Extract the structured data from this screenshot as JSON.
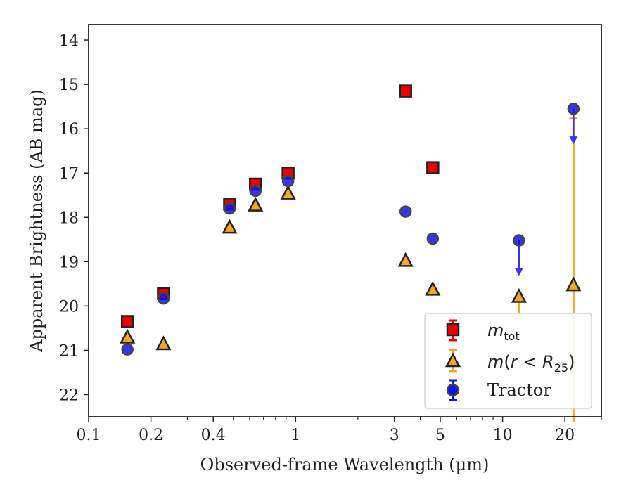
{
  "chart_data": {
    "type": "scatter",
    "xlabel": "Observed-frame Wavelength (μm)",
    "ylabel": "Apparent Brightness (AB mag)",
    "xscale": "log",
    "xlim": [
      0.1,
      30
    ],
    "ylim": [
      22.5,
      13.65
    ],
    "y_inverted": true,
    "x_ticks": [
      0.1,
      0.2,
      0.4,
      1,
      3,
      5,
      10,
      20
    ],
    "x_tick_labels": [
      "0.1",
      "0.2",
      "0.4",
      "1",
      "3",
      "5",
      "10",
      "20"
    ],
    "y_ticks": [
      14,
      15,
      16,
      17,
      18,
      19,
      20,
      21,
      22
    ],
    "y_tick_labels": [
      "14",
      "15",
      "16",
      "17",
      "18",
      "19",
      "20",
      "21",
      "22"
    ],
    "grid": false,
    "legend_position": "bottom-right",
    "series": [
      {
        "name": "m_tot",
        "legend_label": "m_tot",
        "marker": "square",
        "color": "#ee0000",
        "points": [
          {
            "x": 0.154,
            "y": 20.35
          },
          {
            "x": 0.23,
            "y": 19.72
          },
          {
            "x": 0.48,
            "y": 17.7
          },
          {
            "x": 0.64,
            "y": 17.25
          },
          {
            "x": 0.92,
            "y": 17.0
          },
          {
            "x": 3.4,
            "y": 15.15
          },
          {
            "x": 4.6,
            "y": 16.88
          }
        ]
      },
      {
        "name": "m(r<R25)",
        "legend_label": "m(r < R25)",
        "marker": "triangle",
        "color": "#f5a623",
        "points": [
          {
            "x": 0.154,
            "y": 20.7
          },
          {
            "x": 0.23,
            "y": 20.85
          },
          {
            "x": 0.48,
            "y": 18.22
          },
          {
            "x": 0.64,
            "y": 17.72
          },
          {
            "x": 0.92,
            "y": 17.45
          },
          {
            "x": 3.4,
            "y": 18.97
          },
          {
            "x": 4.6,
            "y": 19.62
          },
          {
            "x": 12.0,
            "y": 19.78,
            "err_down": 0.5
          },
          {
            "x": 22.0,
            "y": 19.52,
            "err_up": 3.75,
            "err_down": 3.1
          }
        ]
      },
      {
        "name": "Tractor",
        "legend_label": "Tractor",
        "marker": "circle",
        "color": "#1111ee",
        "points": [
          {
            "x": 0.154,
            "y": 20.98
          },
          {
            "x": 0.23,
            "y": 19.83
          },
          {
            "x": 0.48,
            "y": 17.8
          },
          {
            "x": 0.64,
            "y": 17.4
          },
          {
            "x": 0.92,
            "y": 17.18
          },
          {
            "x": 3.4,
            "y": 17.87
          },
          {
            "x": 4.6,
            "y": 18.48
          },
          {
            "x": 12.0,
            "y": 18.52,
            "upper_limit": true
          },
          {
            "x": 22.0,
            "y": 15.55,
            "upper_limit": true
          }
        ]
      }
    ]
  }
}
